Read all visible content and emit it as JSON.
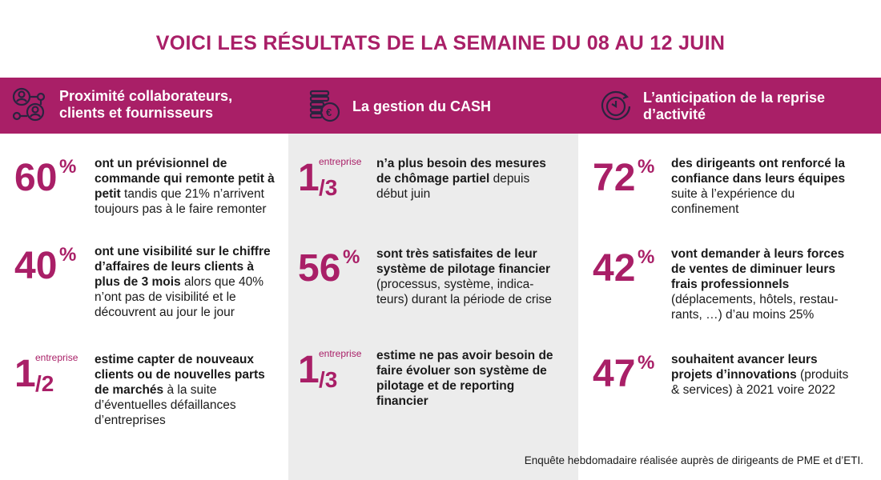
{
  "title": "VOICI LES RÉSULTATS DE LA SEMAINE DU 08 AU 12 JUIN",
  "colors": {
    "accent": "#a91f67",
    "column_bg": "#ececec"
  },
  "columns": [
    {
      "icon": "network-people-icon",
      "heading_line1": "Proximité collaborateurs,",
      "heading_line2": "clients et fournisseurs",
      "stats": [
        {
          "number": "60",
          "suffix": "%",
          "bold": "ont un prévisionnel de commande qui remonte petit à petit",
          "regular": " tandis que 21% n’arrivent toujours pas à le faire remonter"
        },
        {
          "number": "40",
          "suffix": "%",
          "bold": "ont une visibilité sur le chiffre d’affaires de leurs clients à plus de 3 mois",
          "regular": " alors que 40% n’ont pas de visibilité et le découvrent au jour le jour"
        },
        {
          "number": "1",
          "unit": "entreprise",
          "denominator": "/2",
          "bold": "estime capter de nouveaux clients ou de nouvelles parts de marchés",
          "regular": " à la suite d’éventuelles défaillances d’entreprises"
        }
      ]
    },
    {
      "icon": "euro-coins-icon",
      "heading_line1": "La gestion du CASH",
      "heading_line2": "",
      "stats": [
        {
          "number": "1",
          "unit": "entreprise",
          "denominator": "/3",
          "bold": "n’a plus besoin des mesures de chômage partiel",
          "regular": " depuis début juin"
        },
        {
          "number": "56",
          "suffix": "%",
          "bold": "sont très satisfaites de leur système de pilotage financier",
          "regular": " (processus, système, indica-teurs) durant la période de crise"
        },
        {
          "number": "1",
          "unit": "entreprise",
          "denominator": "/3",
          "bold": "estime ne pas avoir besoin de faire évoluer son système de pilotage et de reporting financier",
          "regular": ""
        }
      ]
    },
    {
      "icon": "clock-icon",
      "heading_line1": "L’anticipation de la reprise",
      "heading_line2": "d’activité",
      "stats": [
        {
          "number": "72",
          "suffix": "%",
          "bold": "des dirigeants ont renforcé la confiance dans leurs équipes",
          "regular": " suite à l’expérience du confinement"
        },
        {
          "number": "42",
          "suffix": "%",
          "bold": "vont demander à leurs forces de ventes de diminuer leurs frais professionnels",
          "regular": " (déplacements, hôtels, restau-rants, …) d’au moins 25%"
        },
        {
          "number": "47",
          "suffix": "%",
          "bold": "souhaitent avancer leurs projets d’innovations",
          "regular": " (produits & services) à 2021 voire 2022"
        }
      ]
    }
  ],
  "footnote": "Enquête hebdomadaire réalisée auprès de dirigeants de PME et d’ETI."
}
